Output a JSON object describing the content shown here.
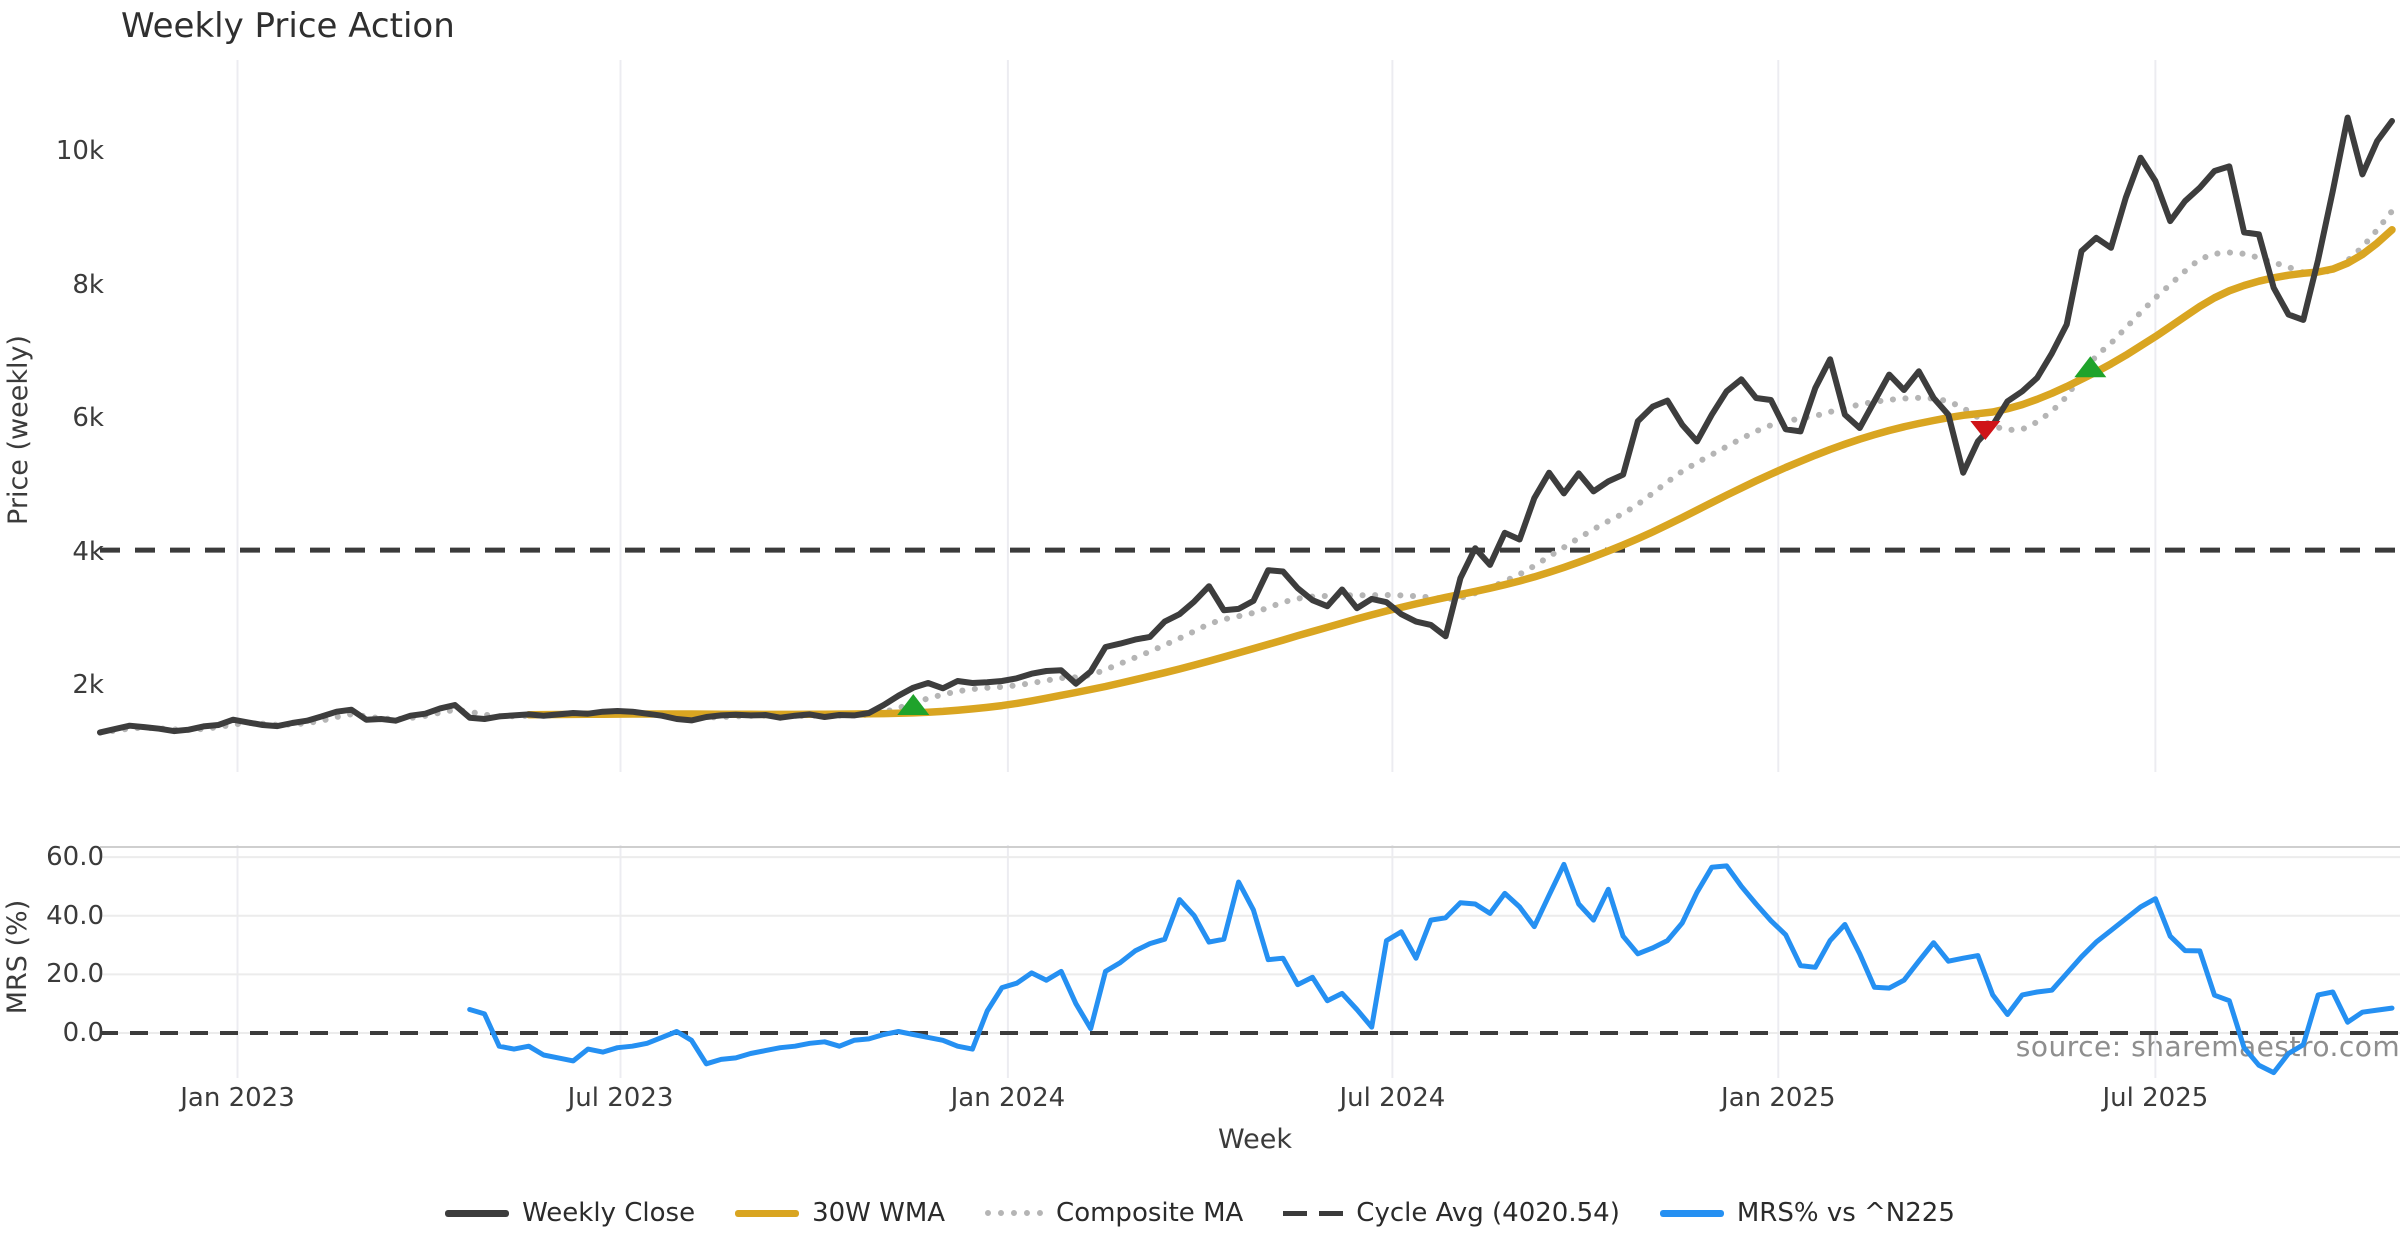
{
  "title": "Weekly Price Action",
  "watermark": "source: sharemaestro.com",
  "axes": {
    "price_label": "Price (weekly)",
    "price_ticks": [
      "10k",
      "8k",
      "6k",
      "4k",
      "2k"
    ],
    "mrs_label": "MRS (%)",
    "mrs_ticks": [
      "60.0",
      "40.0",
      "20.0",
      "0.0"
    ],
    "x_label": "Week",
    "x_ticks": [
      "Jan 2023",
      "Jul 2023",
      "Jan 2024",
      "Jul 2024",
      "Jan 2025",
      "Jul 2025"
    ]
  },
  "legend": {
    "items": [
      {
        "label": "Weekly Close",
        "color": "#3d3d3d",
        "line": "solid"
      },
      {
        "label": "30W WMA",
        "color": "#d9a521",
        "line": "solid"
      },
      {
        "label": "Composite MA",
        "color": "#b5b5b5",
        "line": "dotted"
      },
      {
        "label": "Cycle Avg (4020.54)",
        "color": "#3b3b3b",
        "line": "dashed"
      },
      {
        "label": "MRS% vs ^N225",
        "color": "#2590f2",
        "line": "solid"
      }
    ]
  },
  "chart_data": {
    "type": "line",
    "x_unit": "weeks",
    "n_weeks": 156,
    "panels": [
      {
        "id": "price",
        "ylabel": "Price (weekly)",
        "ylim": [
          650,
          11360
        ],
        "yticks": [
          2000,
          4000,
          6000,
          8000,
          10000
        ],
        "grid": "vertical-faint"
      },
      {
        "id": "mrs",
        "ylabel": "MRS (%)",
        "ylim": [
          -15.3,
          64.1
        ],
        "yticks": [
          0,
          20,
          40,
          60
        ],
        "grid": "horizontal-faint"
      }
    ],
    "x_tick_labels": [
      "Jan 2023",
      "Jul 2023",
      "Jan 2024",
      "Jul 2024",
      "Jan 2025",
      "Jul 2025"
    ],
    "x_tick_weeks": [
      9.3,
      35.2,
      61.4,
      87.4,
      113.5,
      139.0
    ],
    "cycle_avg": 4020.54,
    "mrs_zero_line": 0,
    "legend_position": "bottom-center",
    "series": [
      {
        "name": "Weekly Close",
        "panel": "price",
        "color": "#3d3d3d",
        "style": "solid",
        "values": [
          1290,
          1340,
          1390,
          1370,
          1345,
          1310,
          1330,
          1380,
          1400,
          1480,
          1440,
          1400,
          1385,
          1430,
          1465,
          1530,
          1600,
          1630,
          1480,
          1490,
          1465,
          1540,
          1570,
          1650,
          1700,
          1510,
          1490,
          1530,
          1545,
          1560,
          1540,
          1560,
          1580,
          1570,
          1600,
          1610,
          1600,
          1570,
          1540,
          1490,
          1470,
          1520,
          1545,
          1555,
          1545,
          1550,
          1510,
          1540,
          1560,
          1520,
          1550,
          1545,
          1580,
          1700,
          1840,
          1960,
          2030,
          1950,
          2060,
          2030,
          2040,
          2060,
          2100,
          2170,
          2210,
          2220,
          2020,
          2200,
          2570,
          2620,
          2680,
          2720,
          2950,
          3060,
          3250,
          3480,
          3120,
          3140,
          3260,
          3720,
          3700,
          3450,
          3270,
          3180,
          3430,
          3150,
          3290,
          3240,
          3060,
          2950,
          2900,
          2730,
          3600,
          4050,
          3800,
          4280,
          4180,
          4800,
          5180,
          4870,
          5170,
          4900,
          5050,
          5150,
          5950,
          6170,
          6260,
          5900,
          5650,
          6050,
          6400,
          6580,
          6300,
          6270,
          5830,
          5800,
          6450,
          6880,
          6050,
          5850,
          6250,
          6650,
          6420,
          6700,
          6300,
          6050,
          5180,
          5650,
          5890,
          6250,
          6400,
          6600,
          6970,
          7400,
          8500,
          8700,
          8550,
          9300,
          9900,
          9550,
          8950,
          9250,
          9450,
          9700,
          9770,
          8780,
          8750,
          7950,
          7550,
          7470,
          8370,
          9400,
          10500,
          9650,
          10150,
          10450
        ]
      },
      {
        "name": "30W WMA",
        "panel": "price",
        "color": "#d9a521",
        "style": "solid",
        "values": [
          null,
          null,
          null,
          null,
          null,
          null,
          null,
          null,
          null,
          null,
          null,
          null,
          null,
          null,
          null,
          null,
          null,
          null,
          null,
          null,
          null,
          null,
          null,
          null,
          null,
          null,
          null,
          null,
          null,
          1555,
          1556,
          1558,
          1560,
          1562,
          1563,
          1564,
          1565,
          1566,
          1566,
          1566,
          1565,
          1564,
          1563,
          1562,
          1561,
          1560,
          1560,
          1560,
          1561,
          1562,
          1564,
          1566,
          1570,
          1572,
          1576,
          1582,
          1592,
          1605,
          1622,
          1642,
          1665,
          1692,
          1725,
          1762,
          1802,
          1845,
          1888,
          1932,
          1978,
          2028,
          2080,
          2132,
          2185,
          2240,
          2298,
          2358,
          2420,
          2482,
          2545,
          2608,
          2672,
          2738,
          2802,
          2865,
          2928,
          2990,
          3050,
          3108,
          3163,
          3215,
          3265,
          3312,
          3357,
          3402,
          3450,
          3502,
          3558,
          3620,
          3688,
          3762,
          3840,
          3922,
          4008,
          4098,
          4192,
          4292,
          4398,
          4508,
          4620,
          4732,
          4843,
          4952,
          5058,
          5160,
          5258,
          5352,
          5442,
          5528,
          5608,
          5682,
          5750,
          5812,
          5868,
          5918,
          5962,
          6005,
          6040,
          6065,
          6090,
          6140,
          6200,
          6280,
          6370,
          6470,
          6580,
          6690,
          6810,
          6940,
          7080,
          7220,
          7370,
          7520,
          7670,
          7800,
          7905,
          7985,
          8050,
          8100,
          8140,
          8168,
          8188,
          8230,
          8320,
          8450,
          8620,
          8820
        ]
      },
      {
        "name": "Composite MA",
        "panel": "price",
        "color": "#b5b5b5",
        "style": "dotted",
        "values": [
          1285,
          1315,
          1348,
          1362,
          1352,
          1335,
          1328,
          1342,
          1368,
          1408,
          1432,
          1420,
          1402,
          1408,
          1428,
          1465,
          1520,
          1562,
          1530,
          1500,
          1488,
          1505,
          1538,
          1585,
          1630,
          1600,
          1555,
          1530,
          1532,
          1540,
          1545,
          1550,
          1556,
          1562,
          1570,
          1578,
          1580,
          1572,
          1558,
          1538,
          1518,
          1512,
          1520,
          1530,
          1538,
          1542,
          1535,
          1535,
          1542,
          1538,
          1542,
          1545,
          1556,
          1592,
          1655,
          1730,
          1800,
          1858,
          1905,
          1938,
          1958,
          1972,
          1995,
          2028,
          2068,
          2105,
          2115,
          2148,
          2230,
          2320,
          2410,
          2500,
          2600,
          2700,
          2805,
          2915,
          2985,
          3030,
          3080,
          3160,
          3240,
          3295,
          3325,
          3335,
          3345,
          3345,
          3345,
          3348,
          3342,
          3330,
          3312,
          3285,
          3305,
          3375,
          3455,
          3555,
          3658,
          3785,
          3925,
          4062,
          4200,
          4332,
          4455,
          4568,
          4705,
          4872,
          5042,
          5202,
          5332,
          5452,
          5572,
          5692,
          5802,
          5892,
          5952,
          5992,
          6032,
          6092,
          6152,
          6202,
          6242,
          6272,
          6292,
          6302,
          6292,
          6252,
          6150,
          6010,
          5880,
          5820,
          5830,
          5940,
          6100,
          6320,
          6650,
          6930,
          7120,
          7350,
          7580,
          7800,
          8000,
          8200,
          8380,
          8460,
          8480,
          8460,
          8400,
          8330,
          8260,
          8180,
          8160,
          8220,
          8360,
          8560,
          8820,
          9100
        ]
      },
      {
        "name": "Cycle Avg (4020.54)",
        "panel": "price",
        "color": "#3b3b3b",
        "style": "dashed",
        "constant": 4020.54
      },
      {
        "name": "MRS% vs ^N225",
        "panel": "mrs",
        "color": "#2590f2",
        "style": "solid",
        "values": [
          null,
          null,
          null,
          null,
          null,
          null,
          null,
          null,
          null,
          null,
          null,
          null,
          null,
          null,
          null,
          null,
          null,
          null,
          null,
          null,
          null,
          null,
          null,
          null,
          null,
          8,
          6.5,
          -4.5,
          -5.5,
          -4.5,
          -7.5,
          -8.5,
          -9.5,
          -5.5,
          -6.5,
          -5,
          -4.5,
          -3.5,
          -1.5,
          0.5,
          -2.5,
          -10.5,
          -9,
          -8.5,
          -7,
          -6,
          -5,
          -4.5,
          -3.5,
          -3,
          -4.5,
          -2.5,
          -2,
          -0.5,
          0.5,
          -0.5,
          -1.5,
          -2.5,
          -4.5,
          -5.5,
          7.5,
          15.5,
          17,
          20.5,
          18,
          21,
          10,
          1.5,
          21,
          24,
          28,
          30.5,
          32,
          45.5,
          40,
          31,
          32,
          51.5,
          42,
          25,
          25.5,
          16.5,
          19,
          11,
          13.5,
          8,
          2,
          31.5,
          34.5,
          25.5,
          38.5,
          39.3,
          44.4,
          44,
          40.8,
          47.6,
          43,
          36.3,
          47,
          57.5,
          44,
          38.5,
          49,
          33,
          27,
          29,
          31.5,
          37.5,
          48,
          56.5,
          57,
          50,
          44,
          38.3,
          33.5,
          23,
          22.4,
          31.5,
          37,
          27,
          15.6,
          15.3,
          18,
          24.5,
          30.8,
          24.5,
          25.5,
          26.4,
          13,
          6.3,
          13,
          14,
          14.6,
          20.3,
          26,
          31,
          35,
          39,
          43,
          45.8,
          33,
          28.1,
          28,
          12.9,
          11,
          -5,
          -11,
          -13.5,
          -7,
          -4,
          13,
          14,
          3.7,
          7.1,
          7.8,
          8.5
        ]
      }
    ],
    "markers": [
      {
        "signal": "buy",
        "shape": "triangle-up",
        "color": "#1fa32b",
        "week": 55,
        "price": 1700
      },
      {
        "signal": "sell",
        "shape": "triangle-down",
        "color": "#cf1418",
        "week": 127.5,
        "price": 5820
      },
      {
        "signal": "buy",
        "shape": "triangle-up",
        "color": "#1fa32b",
        "week": 134.6,
        "price": 6760
      }
    ]
  }
}
